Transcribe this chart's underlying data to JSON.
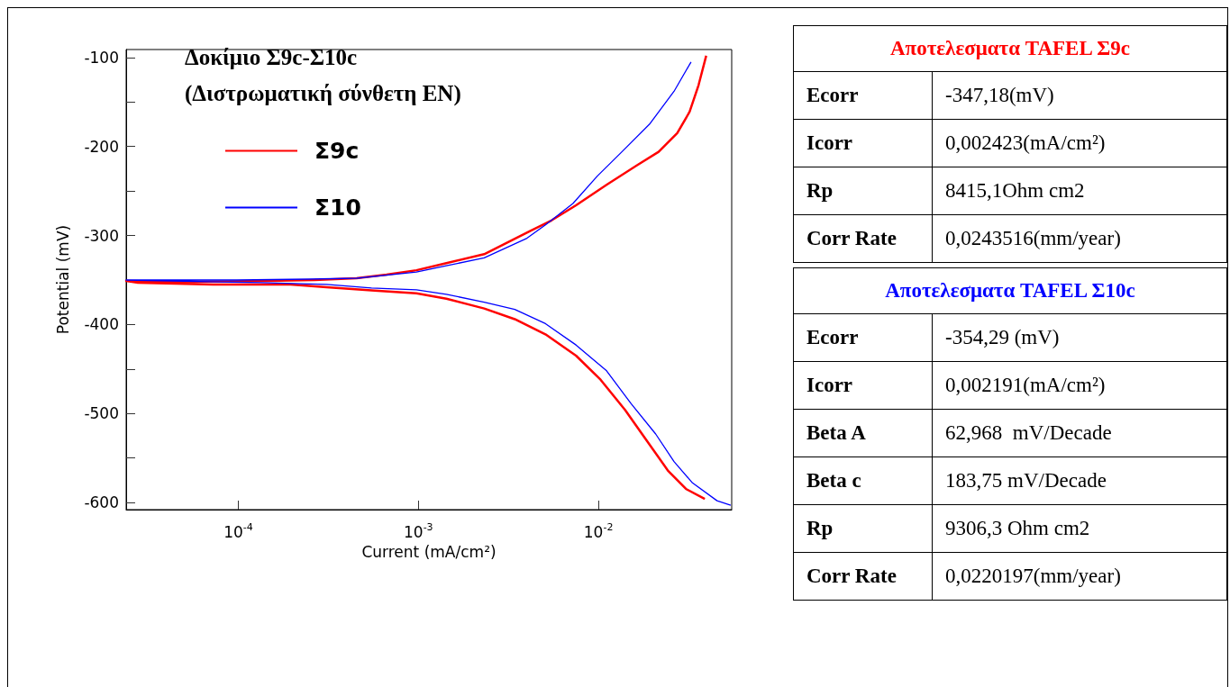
{
  "chart_data": [
    {
      "type": "line",
      "title": "Δοκίμιο Σ9c-Σ10c\n(Διστρωματική σύνθετη ΕΝ)",
      "xlabel": "Current (mA/cm²)",
      "ylabel": "Potential (mV)",
      "log": "x",
      "xlim": [
        2.38e-05,
        0.055
      ],
      "ylim": [
        -608,
        -91
      ],
      "xticks": [
        {
          "value": 0.0001,
          "label": "10$^{-4}$"
        },
        {
          "value": 0.001,
          "label": "10$^{-3}$"
        },
        {
          "value": 0.01,
          "label": "10$^{-2}$"
        }
      ],
      "yticks": [
        -100,
        {
          "value": -150,
          "label": null
        },
        -200,
        {
          "value": -250,
          "label": null
        },
        -300,
        {
          "value": -350,
          "label": null
        },
        -400,
        {
          "value": -450,
          "label": null
        },
        -500,
        {
          "value": -550,
          "label": null
        },
        -600
      ],
      "grid": false,
      "legend": "top left",
      "line_style": "solid",
      "series": [
        {
          "name": "Σ9c",
          "color": "#ff0000",
          "x": [
            0.0397,
            0.036,
            0.0321,
            0.0274,
            0.0216,
            0.0164,
            0.0111,
            0.00751,
            0.00549,
            0.00417,
            0.00232,
            0.00143,
            0.000975,
            0.000665,
            0.000454,
            0.000265,
            0.000144,
            4.56e-05,
            2.38e-05,
            2.77e-05,
            7.23e-05,
            0.000195,
            0.000309,
            0.000571,
            0.000975,
            0.00143,
            0.00232,
            0.00343,
            0.00508,
            0.00751,
            0.01028,
            0.01406,
            0.0185,
            0.0243,
            0.0308,
            0.039
          ],
          "values": [
            -98,
            -131,
            -161,
            -185,
            -206,
            -221,
            -243,
            -266,
            -283,
            -295,
            -321,
            -331,
            -339,
            -344,
            -348,
            -350,
            -351,
            -352,
            -351,
            -353,
            -355,
            -355,
            -358,
            -362,
            -365,
            -371,
            -382,
            -394,
            -411,
            -435,
            -462,
            -496,
            -530,
            -564,
            -585,
            -596
          ]
        },
        {
          "name": "Σ10",
          "color": "#0000ff",
          "x": [
            0.0327,
            0.0263,
            0.0192,
            0.0135,
            0.00988,
            0.00722,
            0.00508,
            0.00401,
            0.00232,
            0.00143,
            0.000975,
            0.000454,
            0.000246,
            9.81e-05,
            2.38e-05,
            0.000133,
            0.000309,
            0.000549,
            0.000975,
            0.00143,
            0.00232,
            0.00343,
            0.00508,
            0.00751,
            0.0111,
            0.0152,
            0.0208,
            0.0263,
            0.0333,
            0.0456,
            0.0543
          ],
          "values": [
            -105,
            -138,
            -175,
            -206,
            -233,
            -264,
            -288,
            -303,
            -325,
            -334,
            -341,
            -348,
            -349,
            -350,
            -350,
            -353,
            -355,
            -359,
            -361,
            -366,
            -375,
            -383,
            -399,
            -423,
            -452,
            -489,
            -523,
            -554,
            -578,
            -598,
            -603
          ]
        }
      ]
    },
    {
      "type": "other",
      "title": "Αποτελεσματα TAFEL Σ9c",
      "annotations": [
        "Ecorr",
        "-347,18(mV)",
        "Icorr",
        "0,002423(mA/cm²)",
        "Rp",
        "8415,1Ohm cm2",
        "Corr Rate",
        "0,0243516(mm/year)"
      ]
    },
    {
      "type": "other",
      "title": "Αποτελεσματα TAFEL Σ10c",
      "annotations": [
        "Ecorr",
        "-354,29 (mV)",
        "Icorr",
        "0,002191(mA/cm²)",
        "Beta A",
        "62,968  mV/Decade",
        "Beta c",
        "183,75 mV/Decade",
        "Rp",
        "9306,3 Ohm cm2",
        "Corr Rate",
        "0,0220197(mm/year)"
      ]
    }
  ]
}
